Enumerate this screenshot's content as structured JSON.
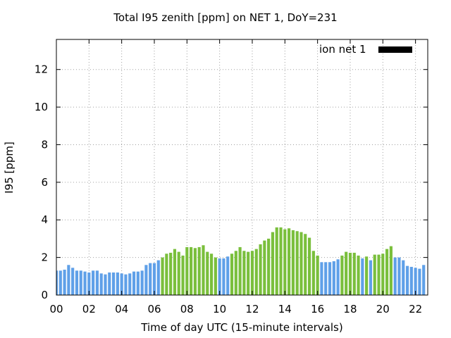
{
  "chart_data": {
    "type": "bar",
    "title": "Total I95 zenith [ppm] on NET 1, DoY=231",
    "xlabel": "Time of day UTC (15-minute intervals)",
    "ylabel": "I95 [ppm]",
    "legend": {
      "label": "ion net 1",
      "color": "#000000",
      "placement": "top-right"
    },
    "grid": true,
    "xlim": [
      0,
      22.75
    ],
    "ylim": [
      0,
      13.6
    ],
    "x_ticks": [
      "00",
      "02",
      "04",
      "06",
      "08",
      "10",
      "12",
      "14",
      "16",
      "18",
      "20",
      "22"
    ],
    "y_ticks": [
      "0",
      "2",
      "4",
      "6",
      "8",
      "10",
      "12"
    ],
    "colors": {
      "blue": "#5fa0e8",
      "green": "#7abf3c"
    },
    "interval_hours": 0.25,
    "series": [
      {
        "values": [
          1.3,
          1.3,
          1.35,
          1.6,
          1.45,
          1.3,
          1.3,
          1.25,
          1.2,
          1.3,
          1.3,
          1.15,
          1.1,
          1.2,
          1.2,
          1.2,
          1.15,
          1.1,
          1.15,
          1.25,
          1.25,
          1.3,
          1.6,
          1.7,
          1.7,
          1.85,
          2.0,
          2.2,
          2.25,
          2.45,
          2.3,
          2.1,
          2.55,
          2.55,
          2.5,
          2.55,
          2.65,
          2.3,
          2.2,
          2.0,
          1.95,
          1.95,
          2.05,
          2.2,
          2.35,
          2.55,
          2.35,
          2.3,
          2.35,
          2.45,
          2.7,
          2.9,
          3.0,
          3.35,
          3.6,
          3.6,
          3.5,
          3.55,
          3.45,
          3.4,
          3.35,
          3.25,
          3.05,
          2.35,
          2.1,
          1.75,
          1.75,
          1.75,
          1.8,
          1.9,
          2.1,
          2.3,
          2.25,
          2.25,
          2.1,
          1.95,
          2.05,
          1.85,
          2.15,
          2.15,
          2.2,
          2.45,
          2.6,
          2.0,
          2.0,
          1.85,
          1.55,
          1.5,
          1.45,
          1.4,
          1.6
        ],
        "colors": [
          "blue",
          "blue",
          "blue",
          "blue",
          "blue",
          "blue",
          "blue",
          "blue",
          "blue",
          "blue",
          "blue",
          "blue",
          "blue",
          "blue",
          "blue",
          "blue",
          "blue",
          "blue",
          "blue",
          "blue",
          "blue",
          "blue",
          "blue",
          "blue",
          "blue",
          "blue",
          "green",
          "green",
          "green",
          "green",
          "green",
          "green",
          "green",
          "green",
          "green",
          "green",
          "green",
          "green",
          "green",
          "green",
          "blue",
          "blue",
          "blue",
          "green",
          "green",
          "green",
          "green",
          "green",
          "green",
          "green",
          "green",
          "green",
          "green",
          "green",
          "green",
          "green",
          "green",
          "green",
          "green",
          "green",
          "green",
          "green",
          "green",
          "green",
          "green",
          "blue",
          "blue",
          "blue",
          "blue",
          "blue",
          "green",
          "green",
          "green",
          "green",
          "green",
          "blue",
          "green",
          "blue",
          "green",
          "green",
          "green",
          "green",
          "green",
          "blue",
          "blue",
          "blue",
          "blue",
          "blue",
          "blue",
          "blue",
          "blue"
        ]
      }
    ]
  }
}
